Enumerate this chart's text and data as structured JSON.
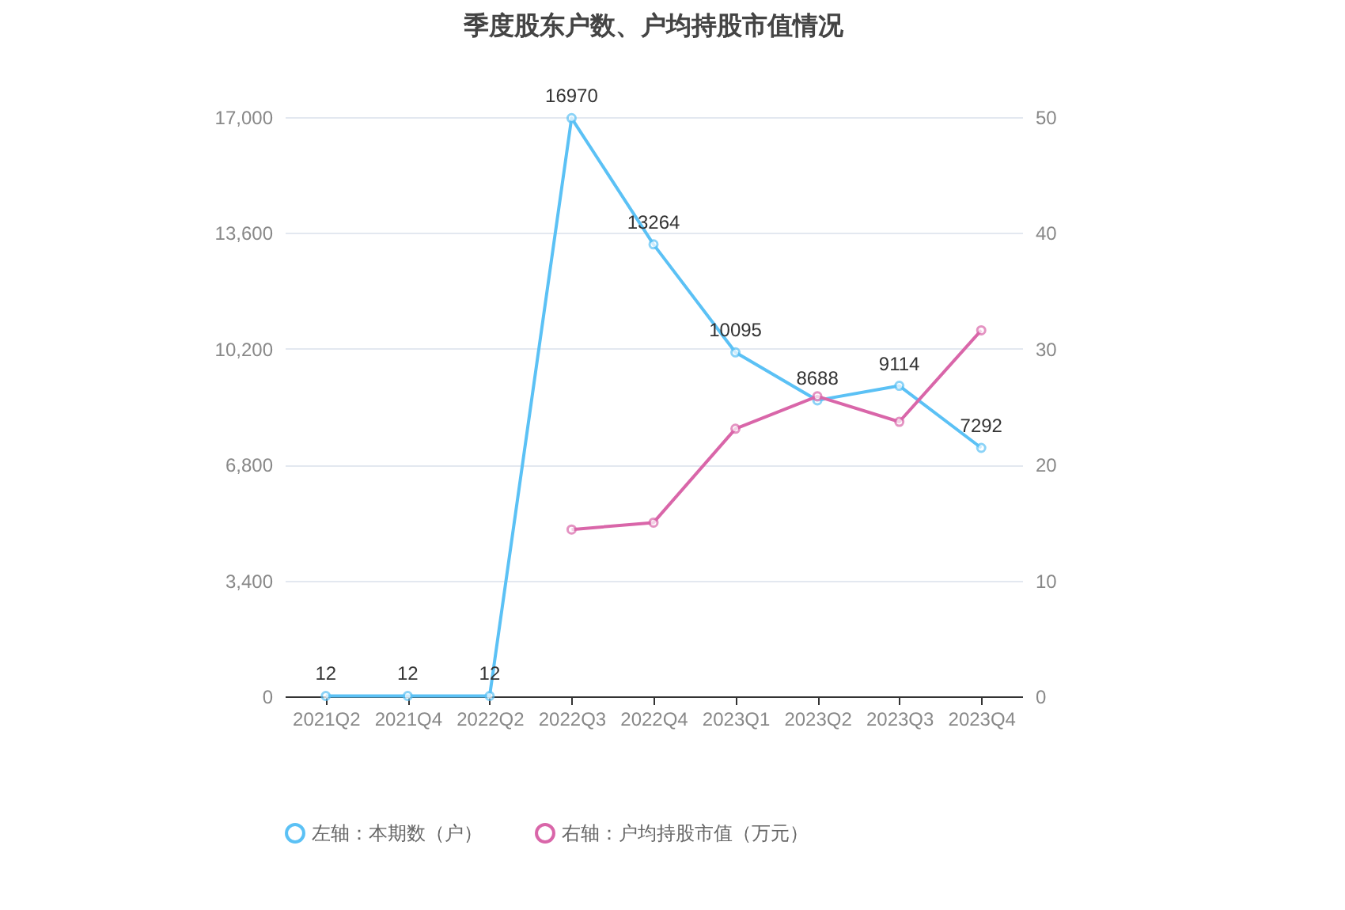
{
  "chart_data": {
    "type": "line",
    "title": "季度股东户数、户均持股市值情况",
    "categories": [
      "2021Q2",
      "2021Q4",
      "2022Q2",
      "2022Q3",
      "2022Q4",
      "2023Q1",
      "2023Q2",
      "2023Q3",
      "2023Q4"
    ],
    "series": [
      {
        "name": "左轴：本期数（户）",
        "color": "#5bc1f5",
        "values": [
          12,
          12,
          12,
          16970,
          13264,
          10095,
          8688,
          9114,
          7292
        ],
        "value_labels": [
          "12",
          "12",
          "12",
          "16970",
          "13264",
          "10095",
          "8688",
          "9114",
          "7292"
        ]
      },
      {
        "name": "右轴：户均持股市值（万元）",
        "color": "#d966a9",
        "axis": "y2",
        "values": [
          null,
          null,
          null,
          14.4,
          15.0,
          23.1,
          25.9,
          23.7,
          31.6
        ]
      }
    ],
    "ylim": [
      0,
      17000
    ],
    "yticks": [
      {
        "value": 0,
        "label": "0"
      },
      {
        "value": 3400,
        "label": "3,400"
      },
      {
        "value": 6800,
        "label": "6,800"
      },
      {
        "value": 10200,
        "label": "10,200"
      },
      {
        "value": 13600,
        "label": "13,600"
      },
      {
        "value": 17000,
        "label": "17,000"
      }
    ],
    "y2lim": [
      0,
      50
    ],
    "y2ticks": [
      0,
      10,
      20,
      30,
      40,
      50
    ],
    "grid": "y",
    "legend": "bottom",
    "marker": "circle",
    "line_style": "solid"
  }
}
